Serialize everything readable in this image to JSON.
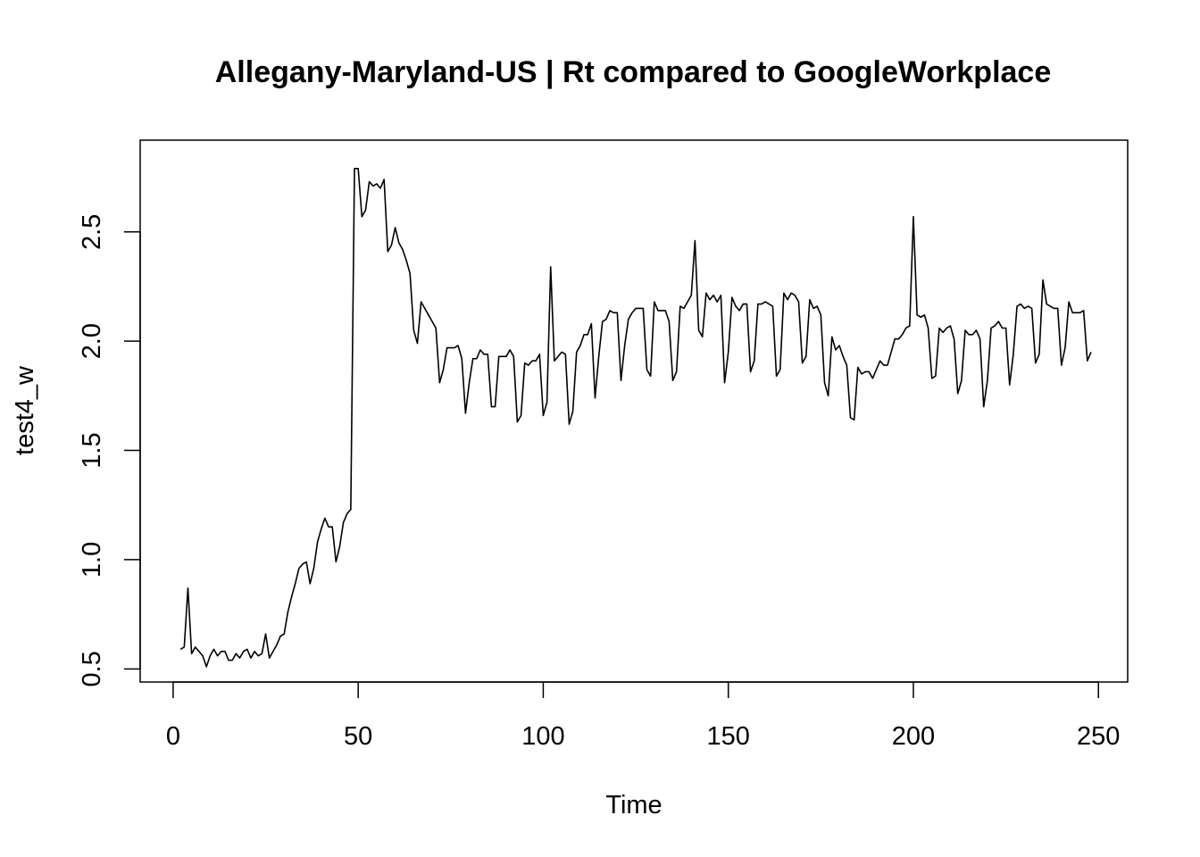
{
  "chart_data": {
    "type": "line",
    "title": "Allegany-Maryland-US | Rt compared to GoogleWorkplace",
    "xlabel": "Time",
    "ylabel": "test4_w",
    "xlim": [
      -8.9,
      257.9
    ],
    "ylim": [
      0.44,
      2.92
    ],
    "xticks": [
      0,
      50,
      100,
      150,
      200,
      250
    ],
    "xtick_labels": [
      "0",
      "50",
      "100",
      "150",
      "200",
      "250"
    ],
    "yticks": [
      0.5,
      1.0,
      1.5,
      2.0,
      2.5
    ],
    "ytick_labels": [
      "0.5",
      "1.0",
      "1.5",
      "2.0",
      "2.5"
    ],
    "grid": false,
    "line_color": "#000000",
    "series": [
      {
        "x_start": 2,
        "values": [
          0.59,
          0.6,
          0.87,
          0.57,
          0.6,
          0.58,
          0.56,
          0.51,
          0.56,
          0.59,
          0.56,
          0.58,
          0.58,
          0.54,
          0.54,
          0.57,
          0.55,
          0.58,
          0.59,
          0.55,
          0.58,
          0.56,
          0.57,
          0.66,
          0.55,
          0.58,
          0.61,
          0.65,
          0.66,
          0.76,
          0.83,
          0.89,
          0.96,
          0.98,
          0.99,
          0.89,
          0.96,
          1.08,
          1.14,
          1.19,
          1.15,
          1.15,
          0.99,
          1.06,
          1.17,
          1.21,
          1.23,
          2.79,
          2.79,
          2.57,
          2.6,
          2.73,
          2.71,
          2.72,
          2.7,
          2.74,
          2.41,
          2.44,
          2.52,
          2.45,
          2.42,
          2.37,
          2.31,
          2.05,
          1.99,
          2.18,
          2.15,
          2.12,
          2.09,
          2.06,
          1.81,
          1.87,
          1.97,
          1.97,
          1.97,
          1.98,
          1.92,
          1.67,
          1.81,
          1.92,
          1.92,
          1.96,
          1.94,
          1.94,
          1.7,
          1.7,
          1.93,
          1.93,
          1.93,
          1.96,
          1.93,
          1.63,
          1.66,
          1.9,
          1.89,
          1.91,
          1.91,
          1.94,
          1.66,
          1.72,
          2.34,
          1.91,
          1.93,
          1.95,
          1.94,
          1.62,
          1.68,
          1.95,
          1.98,
          2.03,
          2.03,
          2.08,
          1.74,
          1.93,
          2.09,
          2.1,
          2.14,
          2.13,
          2.13,
          1.82,
          1.98,
          2.1,
          2.13,
          2.15,
          2.15,
          2.15,
          1.87,
          1.84,
          2.18,
          2.14,
          2.14,
          2.14,
          2.09,
          1.82,
          1.86,
          2.16,
          2.15,
          2.18,
          2.21,
          2.46,
          2.05,
          2.02,
          2.22,
          2.19,
          2.21,
          2.18,
          2.21,
          1.81,
          1.95,
          2.2,
          2.16,
          2.14,
          2.17,
          2.17,
          1.86,
          1.91,
          2.17,
          2.17,
          2.18,
          2.17,
          2.16,
          1.84,
          1.87,
          2.22,
          2.19,
          2.22,
          2.21,
          2.18,
          1.9,
          1.93,
          2.19,
          2.15,
          2.16,
          2.12,
          1.81,
          1.75,
          2.02,
          1.96,
          1.98,
          1.93,
          1.89,
          1.65,
          1.64,
          1.88,
          1.85,
          1.86,
          1.86,
          1.83,
          1.87,
          1.91,
          1.89,
          1.89,
          1.95,
          2.01,
          2.01,
          2.03,
          2.06,
          2.07,
          2.57,
          2.12,
          2.11,
          2.12,
          2.06,
          1.83,
          1.84,
          2.06,
          2.04,
          2.06,
          2.07,
          2.01,
          1.76,
          1.82,
          2.05,
          2.03,
          2.03,
          2.05,
          2.01,
          1.7,
          1.82,
          2.06,
          2.07,
          2.09,
          2.06,
          2.06,
          1.8,
          1.94,
          2.16,
          2.17,
          2.15,
          2.16,
          2.15,
          1.9,
          1.94,
          2.28,
          2.17,
          2.16,
          2.15,
          2.15,
          1.89,
          1.97,
          2.18,
          2.13,
          2.13,
          2.13,
          2.14,
          1.91,
          1.95
        ]
      }
    ]
  }
}
